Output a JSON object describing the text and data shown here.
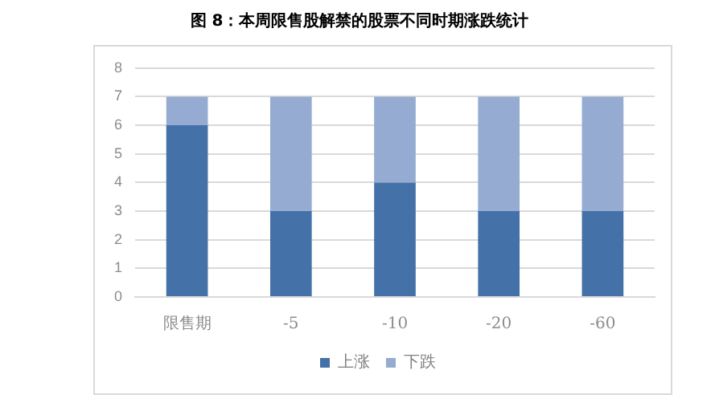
{
  "chart_data": {
    "type": "bar",
    "title": "图 8：本周限售股解禁的股票不同时期涨跌统计",
    "categories": [
      "限售期",
      "-5",
      "-10",
      "-20",
      "-60"
    ],
    "stacked": true,
    "series": [
      {
        "name": "上涨",
        "color": "#4472a8",
        "values": [
          6,
          3,
          4,
          3,
          3
        ]
      },
      {
        "name": "下跌",
        "color": "#95abd2",
        "values": [
          1,
          4,
          3,
          4,
          4
        ]
      }
    ],
    "ylim": [
      0,
      8
    ],
    "yticks": [
      0,
      1,
      2,
      3,
      4,
      5,
      6,
      7,
      8
    ],
    "grid": "y",
    "legend": "bottom"
  }
}
